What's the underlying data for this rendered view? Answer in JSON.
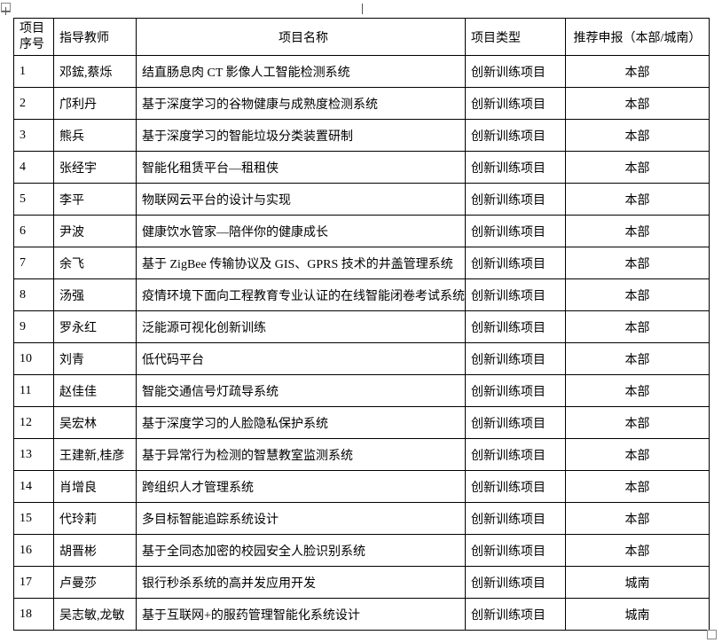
{
  "table": {
    "header": [
      "项目序号",
      "指导教师",
      "项目名称",
      "项目类型",
      "推荐申报（本部/城南）"
    ],
    "rows": [
      [
        "1",
        "邓鋐,蔡烁",
        "结直肠息肉 CT 影像人工智能检测系统",
        "创新训练项目",
        "本部"
      ],
      [
        "2",
        "邝利丹",
        "基于深度学习的谷物健康与成熟度检测系统",
        "创新训练项目",
        "本部"
      ],
      [
        "3",
        "熊兵",
        "基于深度学习的智能垃圾分类装置研制",
        "创新训练项目",
        "本部"
      ],
      [
        "4",
        "张经宇",
        "智能化租赁平台—租租侠",
        "创新训练项目",
        "本部"
      ],
      [
        "5",
        "李平",
        "物联网云平台的设计与实现",
        "创新训练项目",
        "本部"
      ],
      [
        "6",
        "尹波",
        "健康饮水管家—陪伴你的健康成长",
        "创新训练项目",
        "本部"
      ],
      [
        "7",
        "余飞",
        "基于 ZigBee 传输协议及 GIS、GPRS 技术的井盖管理系统",
        "创新训练项目",
        "本部"
      ],
      [
        "8",
        "汤强",
        "疫情环境下面向工程教育专业认证的在线智能闭卷考试系统",
        "创新训练项目",
        "本部"
      ],
      [
        "9",
        "罗永红",
        "泛能源可视化创新训练",
        "创新训练项目",
        "本部"
      ],
      [
        "10",
        "刘青",
        "低代码平台",
        "创新训练项目",
        "本部"
      ],
      [
        "11",
        "赵佳佳",
        "智能交通信号灯疏导系统",
        "创新训练项目",
        "本部"
      ],
      [
        "12",
        "吴宏林",
        "基于深度学习的人脸隐私保护系统",
        "创新训练项目",
        "本部"
      ],
      [
        "13",
        "王建新,桂彦",
        "基于异常行为检测的智慧教室监测系统",
        "创新训练项目",
        "本部"
      ],
      [
        "14",
        "肖增良",
        "跨组织人才管理系统",
        "创新训练项目",
        "本部"
      ],
      [
        "15",
        "代玲莉",
        "多目标智能追踪系统设计",
        "创新训练项目",
        "本部"
      ],
      [
        "16",
        "胡晋彬",
        "基于全同态加密的校园安全人脸识别系统",
        "创新训练项目",
        "本部"
      ],
      [
        "17",
        "卢曼莎",
        "银行秒杀系统的高并发应用开发",
        "创新训练项目",
        "城南"
      ],
      [
        "18",
        "吴志敏,龙敏",
        "基于互联网+的服药管理智能化系统设计",
        "创新训练项目",
        "城南"
      ]
    ]
  }
}
